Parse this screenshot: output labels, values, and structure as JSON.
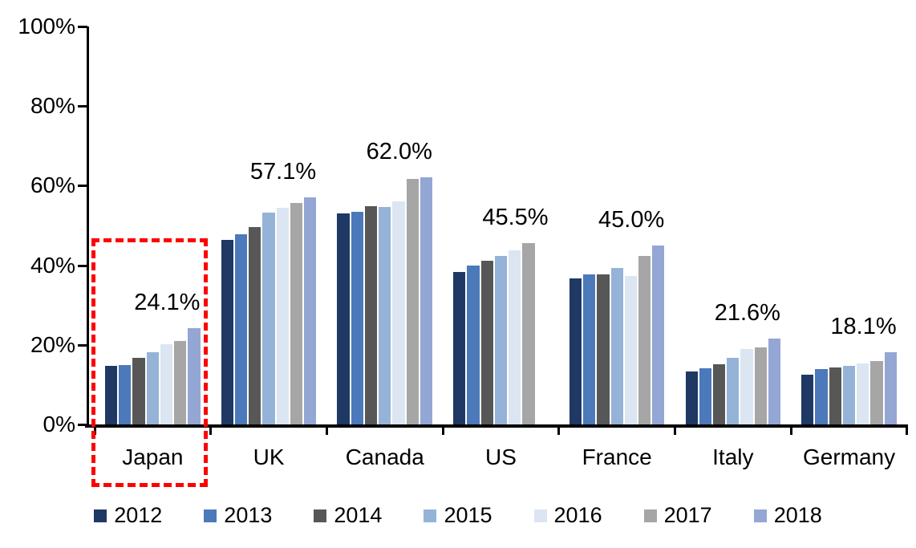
{
  "chart_data": {
    "type": "bar",
    "title": "",
    "xlabel": "",
    "ylabel": "",
    "categories": [
      "Japan",
      "UK",
      "Canada",
      "US",
      "France",
      "Italy",
      "Germany"
    ],
    "series": [
      {
        "name": "2012",
        "color": "#1F3864",
        "values": [
          14.8,
          46.3,
          53.0,
          38.3,
          36.6,
          13.3,
          12.6
        ]
      },
      {
        "name": "2013",
        "color": "#4B79BA",
        "values": [
          15.0,
          47.7,
          53.4,
          40.0,
          37.8,
          14.2,
          14.0
        ]
      },
      {
        "name": "2014",
        "color": "#575757",
        "values": [
          16.7,
          49.6,
          54.9,
          41.2,
          37.7,
          15.2,
          14.4
        ]
      },
      {
        "name": "2015",
        "color": "#95B3D7",
        "values": [
          18.2,
          53.2,
          54.6,
          42.3,
          39.3,
          16.8,
          14.8
        ]
      },
      {
        "name": "2016",
        "color": "#DCE5F2",
        "values": [
          20.2,
          54.5,
          56.1,
          43.7,
          37.3,
          19.0,
          15.4
        ]
      },
      {
        "name": "2017",
        "color": "#A6A6A6",
        "values": [
          20.9,
          55.6,
          61.6,
          45.5,
          42.3,
          19.3,
          15.9
        ]
      },
      {
        "name": "2018",
        "color": "#93A6D4",
        "values": [
          24.1,
          57.1,
          62.0,
          null,
          45.0,
          21.6,
          18.1
        ]
      }
    ],
    "data_labels": [
      "24.1%",
      "57.1%",
      "62.0%",
      "45.5%",
      "45.0%",
      "21.6%",
      "18.1%"
    ],
    "y_ticks": [
      "0%",
      "20%",
      "40%",
      "60%",
      "80%",
      "100%"
    ],
    "ylim": [
      0,
      100
    ],
    "grid": false,
    "legend_position": "bottom",
    "annotation": {
      "type": "dashed-box",
      "target": "Japan",
      "color": "#FF0000"
    }
  }
}
